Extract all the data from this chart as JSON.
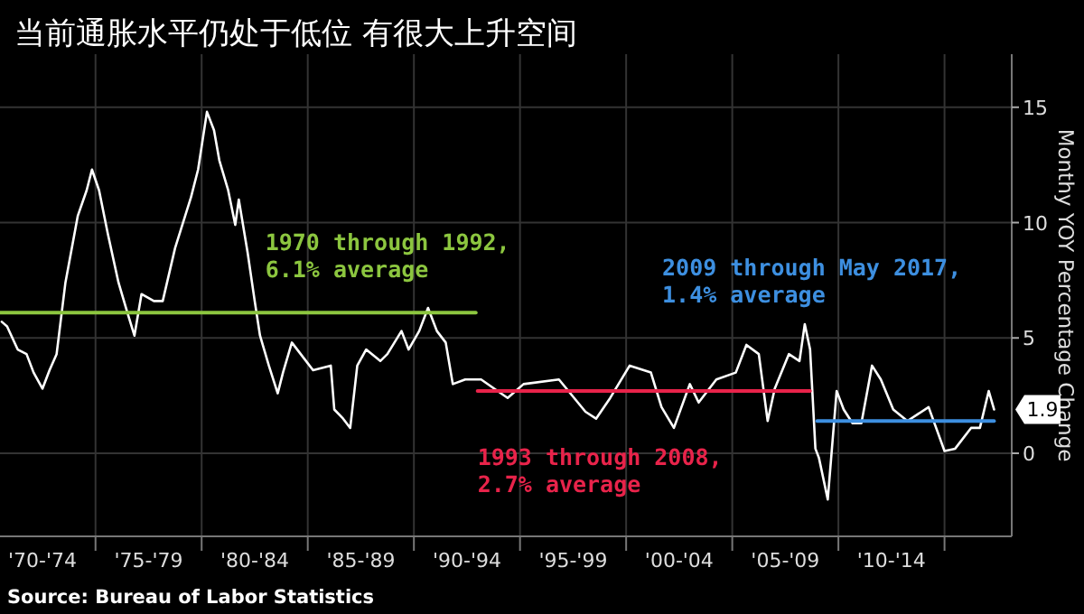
{
  "chart_data": {
    "type": "line",
    "title": "当前通胀水平仍处于低位 有很大上升空间",
    "ylabel": "Monthy YOY Percentage Change",
    "annotations": [
      "Source: Bureau of Labor Statistics"
    ],
    "xlim": [
      "1970-07",
      "2018-03"
    ],
    "ylim": [
      -3.6,
      17.3
    ],
    "yticks": [
      0,
      5,
      10,
      15
    ],
    "xticks": [
      {
        "value": "1972-07",
        "label": "'70-'74"
      },
      {
        "value": "1975-01",
        "label": null
      },
      {
        "value": "1977-07",
        "label": "'75-'79"
      },
      {
        "value": "1980-01",
        "label": null
      },
      {
        "value": "1982-07",
        "label": "'80-'84"
      },
      {
        "value": "1985-01",
        "label": null
      },
      {
        "value": "1987-07",
        "label": "'85-'89"
      },
      {
        "value": "1990-01",
        "label": null
      },
      {
        "value": "1992-07",
        "label": "'90-'94"
      },
      {
        "value": "1995-01",
        "label": null
      },
      {
        "value": "1997-07",
        "label": "'95-'99"
      },
      {
        "value": "2000-01",
        "label": null
      },
      {
        "value": "2002-07",
        "label": "'00-'04"
      },
      {
        "value": "2005-01",
        "label": null
      },
      {
        "value": "2007-07",
        "label": "'05-'09"
      },
      {
        "value": "2010-01",
        "label": null
      },
      {
        "value": "2012-07",
        "label": "'10-'14"
      },
      {
        "value": "2015-01",
        "label": null
      }
    ],
    "grid": true,
    "marker": "none",
    "line_style": "solid",
    "series": [
      {
        "color": "#ffffff",
        "x": [
          "1970-08",
          "1970-11",
          "1971-05",
          "1971-10",
          "1972-02",
          "1972-07",
          "1972-11",
          "1973-03",
          "1973-08",
          "1974-03",
          "1974-08",
          "1974-11",
          "1975-03",
          "1975-08",
          "1976-02",
          "1976-07",
          "1976-11",
          "1977-03",
          "1977-10",
          "1978-03",
          "1978-10",
          "1979-07",
          "1979-11",
          "1980-04",
          "1980-08",
          "1980-11",
          "1981-04",
          "1981-08",
          "1981-10",
          "1982-03",
          "1982-07",
          "1982-10",
          "1983-03",
          "1983-08",
          "1983-11",
          "1984-04",
          "1984-09",
          "1985-04",
          "1986-02",
          "1986-04",
          "1986-09",
          "1987-01",
          "1987-05",
          "1987-10",
          "1988-06",
          "1988-10",
          "1989-06",
          "1989-10",
          "1990-04",
          "1990-09",
          "1991-02",
          "1991-07",
          "1991-11",
          "1992-06",
          "1993-03",
          "1994-06",
          "1995-03",
          "1996-11",
          "1998-02",
          "1998-08",
          "1999-04",
          "2000-03",
          "2001-03",
          "2001-09",
          "2002-04",
          "2003-01",
          "2003-06",
          "2004-04",
          "2005-03",
          "2005-09",
          "2006-04",
          "2006-09",
          "2007-01",
          "2007-09",
          "2008-03",
          "2008-06",
          "2008-09",
          "2008-12",
          "2009-02",
          "2009-07",
          "2009-12",
          "2010-04",
          "2010-09",
          "2011-02",
          "2011-08",
          "2012-01",
          "2012-08",
          "2013-04",
          "2014-04",
          "2015-01",
          "2015-07",
          "2016-04",
          "2016-09",
          "2017-02",
          "2017-05"
        ],
        "values": [
          5.7,
          5.5,
          4.5,
          4.3,
          3.5,
          2.8,
          3.6,
          4.3,
          7.4,
          10.3,
          11.4,
          12.3,
          11.4,
          9.5,
          7.4,
          6.1,
          5.1,
          6.9,
          6.6,
          6.6,
          8.9,
          11.1,
          12.3,
          14.8,
          14.0,
          12.7,
          11.4,
          9.9,
          11.0,
          8.7,
          6.6,
          5.1,
          3.8,
          2.6,
          3.5,
          4.8,
          4.3,
          3.6,
          3.8,
          1.9,
          1.5,
          1.1,
          3.8,
          4.5,
          4.0,
          4.3,
          5.3,
          4.5,
          5.3,
          6.3,
          5.3,
          4.8,
          3.0,
          3.2,
          3.2,
          2.4,
          3.0,
          3.2,
          1.8,
          1.5,
          2.4,
          3.8,
          3.5,
          2.0,
          1.1,
          3.0,
          2.2,
          3.2,
          3.5,
          4.7,
          4.3,
          1.4,
          2.8,
          4.3,
          4.0,
          5.6,
          4.5,
          0.2,
          -0.2,
          -2.0,
          2.7,
          1.9,
          1.3,
          1.3,
          3.8,
          3.2,
          1.9,
          1.4,
          2.0,
          0.1,
          0.2,
          1.1,
          1.1,
          2.7,
          1.9
        ],
        "value_labels": [
          null,
          null,
          null,
          null,
          null,
          null,
          null,
          null,
          null,
          null,
          null,
          null,
          null,
          null,
          null,
          null,
          null,
          null,
          null,
          null,
          null,
          null,
          null,
          null,
          null,
          null,
          null,
          null,
          null,
          null,
          null,
          null,
          null,
          null,
          null,
          null,
          null,
          null,
          null,
          null,
          null,
          null,
          null,
          null,
          null,
          null,
          null,
          null,
          null,
          null,
          null,
          null,
          null,
          null,
          null,
          null,
          null,
          null,
          null,
          null,
          null,
          null,
          null,
          null,
          null,
          null,
          null,
          null,
          null,
          null,
          null,
          null,
          null,
          null,
          null,
          null,
          null,
          null,
          null,
          null,
          null,
          null,
          null,
          null,
          null,
          null,
          null,
          null,
          null,
          null,
          null,
          null,
          null,
          null,
          "1.9"
        ]
      },
      {
        "name": "1970 through 1992, 6.1% average",
        "color": "#8cc63f",
        "x": [
          "1970-07",
          "1992-12"
        ],
        "values": [
          6.1,
          6.1
        ]
      },
      {
        "name": "1993 through 2008, 2.7% average",
        "color": "#e8234a",
        "x": [
          "1993-01",
          "2008-09"
        ],
        "values": [
          2.7,
          2.7
        ]
      },
      {
        "name": "2009 through May 2017, 1.4% average",
        "color": "#3d8fe0",
        "x": [
          "2009-01",
          "2017-05"
        ],
        "values": [
          1.4,
          1.4
        ]
      }
    ]
  }
}
